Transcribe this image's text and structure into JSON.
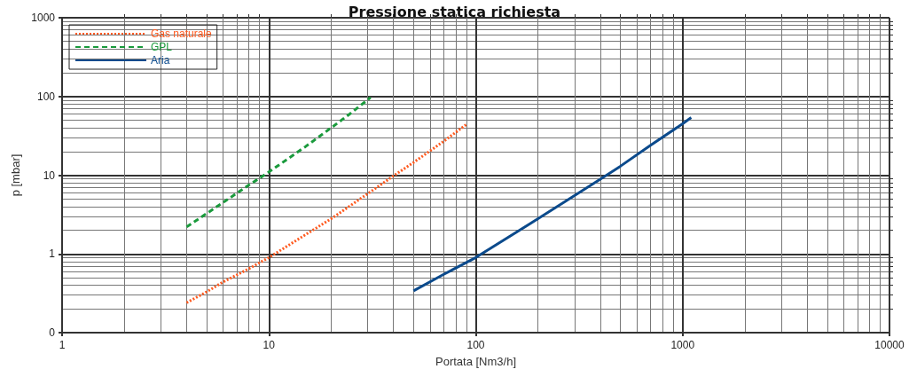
{
  "chart_data": {
    "type": "line",
    "title": "Pressione statica richiesta",
    "xlabel": "Portata [Nm3/h]",
    "ylabel": "p [mbar]",
    "log": "xy",
    "xlim": [
      1,
      10000
    ],
    "xticks": [
      1,
      10,
      100,
      1000,
      10000
    ],
    "ylim": [
      0.1,
      1000
    ],
    "yticks": [
      {
        "value": 0.1,
        "label": "0"
      },
      1,
      10,
      100,
      1000
    ],
    "grid": true,
    "legend": "top left",
    "marker": "none",
    "series": [
      {
        "name": "Gas naturale",
        "color": "#ff5a1f",
        "line_style": "dotted",
        "x": [
          4,
          5,
          6,
          8,
          10,
          15,
          20,
          30,
          40,
          50,
          70,
          90
        ],
        "values": [
          0.24,
          0.33,
          0.44,
          0.65,
          0.9,
          1.75,
          2.8,
          5.8,
          9.8,
          14.5,
          27,
          44
        ]
      },
      {
        "name": "GPL",
        "color": "#1a9a3c",
        "line_style": "dashed",
        "x": [
          4,
          6,
          8,
          10,
          15,
          20,
          25,
          31
        ],
        "values": [
          2.2,
          4.5,
          7.5,
          11,
          23,
          40,
          62,
          97
        ]
      },
      {
        "name": "Aria",
        "color": "#0b4a8c",
        "line_style": "solid",
        "x": [
          50,
          70,
          100,
          200,
          300,
          400,
          500,
          700,
          1000,
          1100
        ],
        "values": [
          0.34,
          0.55,
          0.9,
          2.8,
          5.5,
          8.9,
          13,
          24,
          45,
          54
        ]
      }
    ]
  }
}
